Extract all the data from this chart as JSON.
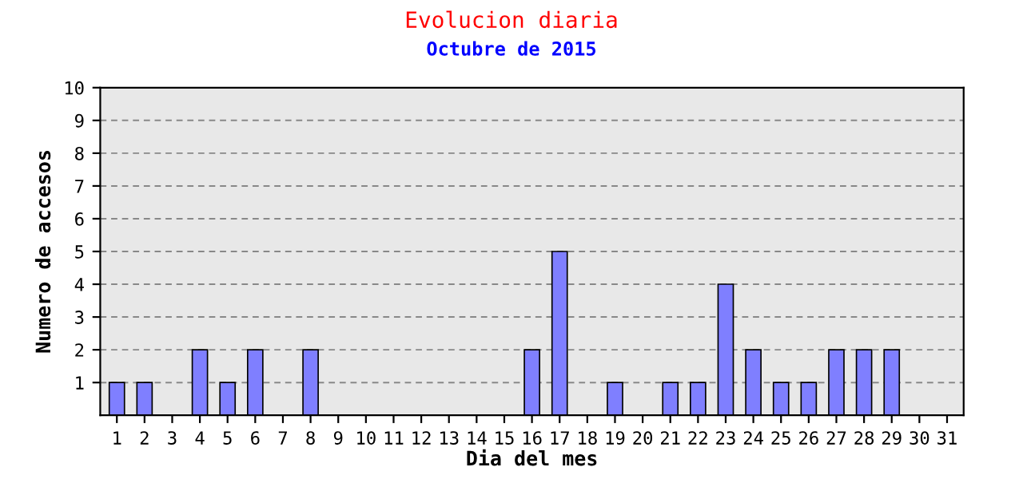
{
  "chart_data": {
    "type": "bar",
    "title": "Evolucion diaria",
    "subtitle": "Octubre de 2015",
    "xlabel": "Dia del mes",
    "ylabel": "Numero de accesos",
    "categories": [
      "1",
      "2",
      "3",
      "4",
      "5",
      "6",
      "7",
      "8",
      "9",
      "10",
      "11",
      "12",
      "13",
      "14",
      "15",
      "16",
      "17",
      "18",
      "19",
      "20",
      "21",
      "22",
      "23",
      "24",
      "25",
      "26",
      "27",
      "28",
      "29",
      "30",
      "31"
    ],
    "values": [
      1,
      1,
      0,
      2,
      1,
      2,
      0,
      2,
      0,
      0,
      0,
      0,
      0,
      0,
      0,
      2,
      5,
      0,
      1,
      0,
      1,
      1,
      4,
      2,
      1,
      1,
      2,
      2,
      2,
      0,
      0
    ],
    "color": "#7f7fff",
    "ylim": [
      0,
      10
    ],
    "yticks": [
      1,
      2,
      3,
      4,
      5,
      6,
      7,
      8,
      9,
      10
    ],
    "grid": "y"
  }
}
